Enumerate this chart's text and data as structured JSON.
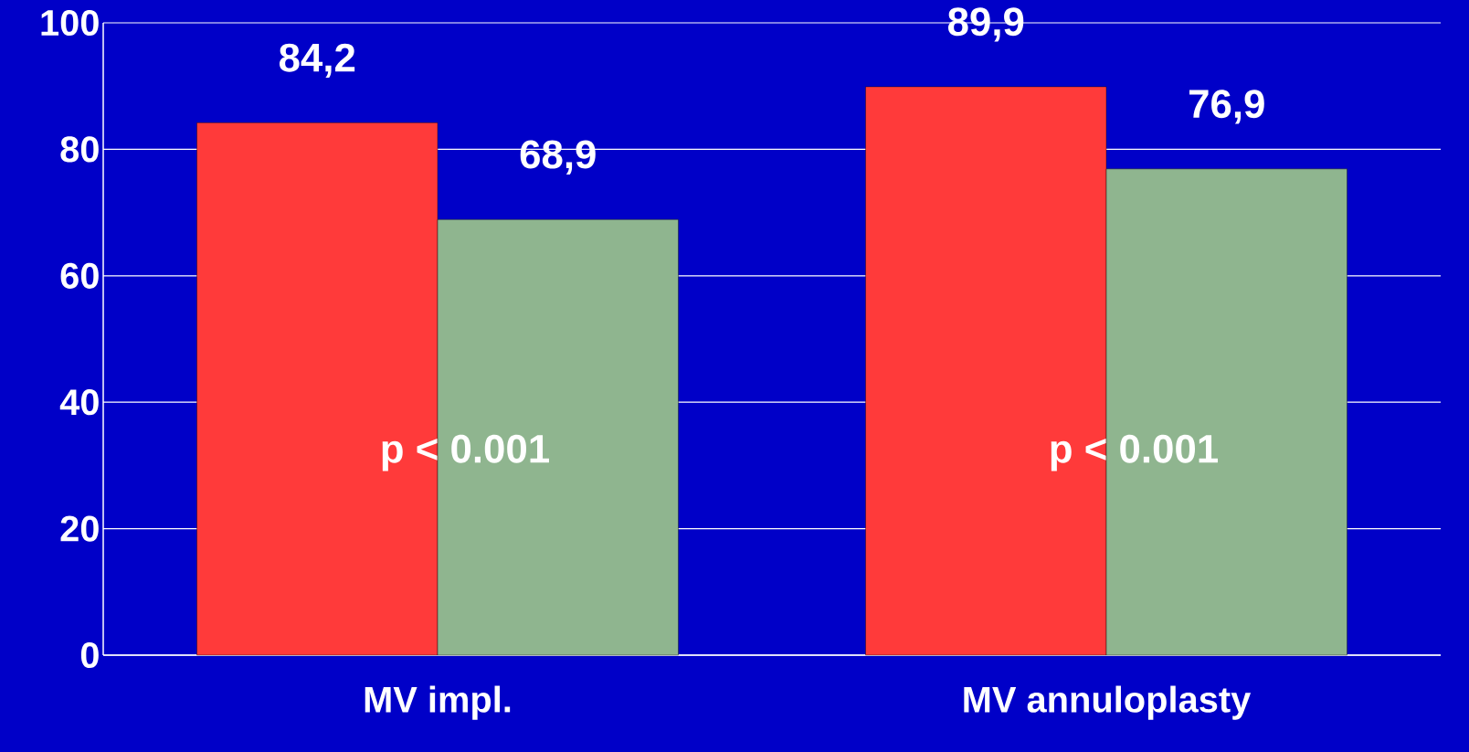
{
  "chart_data": {
    "type": "bar",
    "categories": [
      "MV impl.",
      "MV annuloplasty"
    ],
    "series": [
      {
        "color": "#ff3a3a",
        "values": [
          84.2,
          89.9
        ],
        "value_labels": [
          "84,2",
          "89,9"
        ]
      },
      {
        "color": "#8fb58f",
        "values": [
          68.9,
          76.9
        ],
        "value_labels": [
          "68,9",
          "76,9"
        ]
      }
    ],
    "ylim": [
      0,
      100
    ],
    "yticks": [
      0,
      20,
      40,
      60,
      80,
      100
    ],
    "grid": "y",
    "annotations": [
      {
        "text": "p < 0.001",
        "x": "MV impl.",
        "y": 32
      },
      {
        "text": "p < 0.001",
        "x": "MV annuloplasty",
        "y": 32
      }
    ]
  }
}
